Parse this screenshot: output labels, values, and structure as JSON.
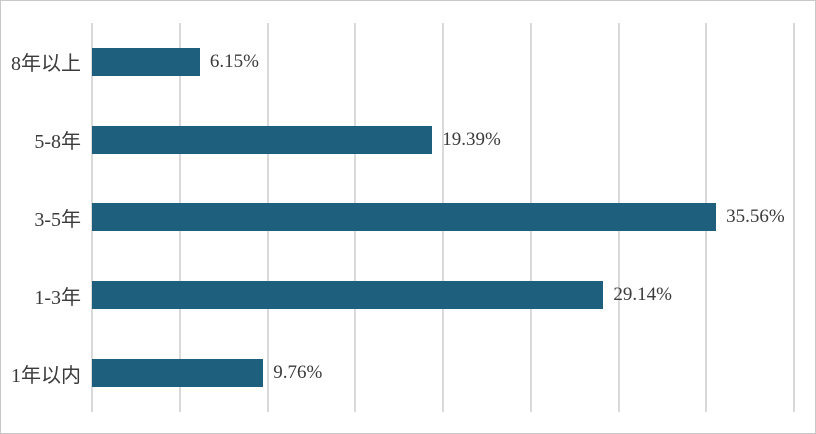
{
  "chart_data": {
    "type": "bar",
    "orientation": "horizontal",
    "title": "",
    "xlabel": "",
    "ylabel": "",
    "categories": [
      "8年以上",
      "5-8年",
      "3-5年",
      "1-3年",
      "1年以内"
    ],
    "values": [
      6.15,
      19.39,
      35.56,
      29.14,
      9.76
    ],
    "value_labels": [
      "6.15%",
      "19.39%",
      "35.56%",
      "29.14%",
      "9.76%"
    ],
    "xlim": [
      0,
      40
    ],
    "grid_step": 5,
    "grid": true,
    "legend": false,
    "colors": {
      "bar": "#1F5F7E",
      "gridline": "#D9D9D9",
      "text": "#3B3B3B",
      "border": "#C9C9C9",
      "background": "#FFFFFF"
    }
  }
}
